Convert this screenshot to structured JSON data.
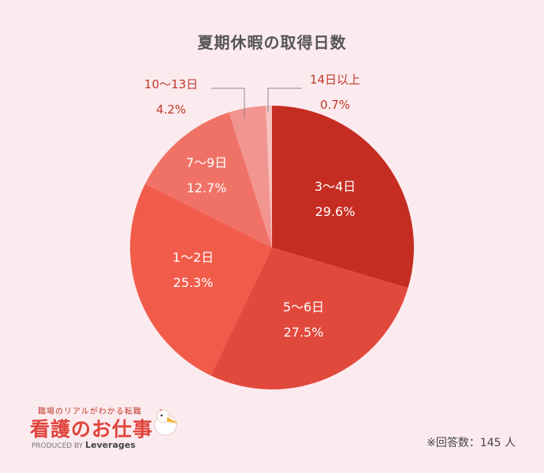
{
  "chart_data": {
    "type": "pie",
    "title": "夏期休暇の取得日数",
    "start_angle_deg": 0,
    "direction": "clockwise",
    "slices": [
      {
        "label": "3〜4日",
        "value": 29.6,
        "display": "29.6%",
        "color": "#c62d22",
        "label_pos": "inside"
      },
      {
        "label": "5〜6日",
        "value": 27.5,
        "display": "27.5%",
        "color": "#e2493d",
        "label_pos": "inside"
      },
      {
        "label": "1〜2日",
        "value": 25.3,
        "display": "25.3%",
        "color": "#f15c4a",
        "label_pos": "inside"
      },
      {
        "label": "7〜9日",
        "value": 12.7,
        "display": "12.7%",
        "color": "#f07266",
        "label_pos": "inside"
      },
      {
        "label": "10〜13日",
        "value": 4.2,
        "display": "4.2%",
        "color": "#f29590",
        "label_pos": "outside-left"
      },
      {
        "label": "14日以上",
        "value": 0.7,
        "display": "0.7%",
        "color": "#f5c3c0",
        "label_pos": "outside-right"
      }
    ]
  },
  "footnote": "※回答数：145 人",
  "logo": {
    "tagline": "職場のリアルがわかる転職",
    "name": "看護のお仕事",
    "produced_by": "PRODUCED BY",
    "brand": "Leverages"
  }
}
